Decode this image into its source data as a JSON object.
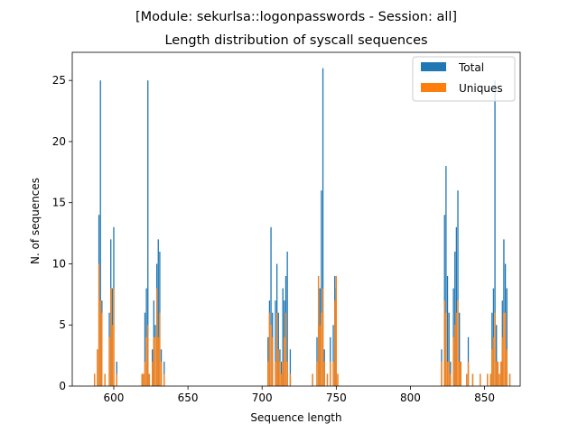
{
  "chart_data": {
    "type": "bar",
    "title": "[Module: sekurlsa::logonpasswords - Session: all]",
    "subtitle": "Length distribution of syscall sequences",
    "xlabel": "Sequence length",
    "ylabel": "N. of sequences",
    "xlim": [
      572,
      874
    ],
    "ylim": [
      0,
      27.3
    ],
    "xticks": [
      600,
      650,
      700,
      750,
      800,
      850
    ],
    "yticks": [
      0,
      5,
      10,
      15,
      20,
      25
    ],
    "grid": false,
    "legend_position": "top-right",
    "series": [
      {
        "name": "Total",
        "color": "#1f77b4",
        "points": [
          [
            587,
            1
          ],
          [
            589,
            3
          ],
          [
            590,
            14
          ],
          [
            591,
            25
          ],
          [
            592,
            7
          ],
          [
            594,
            1
          ],
          [
            597,
            6
          ],
          [
            598,
            12
          ],
          [
            599,
            8
          ],
          [
            600,
            13
          ],
          [
            602,
            2
          ],
          [
            619,
            1
          ],
          [
            620,
            1
          ],
          [
            621,
            6
          ],
          [
            622,
            8
          ],
          [
            623,
            25
          ],
          [
            624,
            1
          ],
          [
            626,
            3
          ],
          [
            627,
            7
          ],
          [
            628,
            5
          ],
          [
            629,
            10
          ],
          [
            630,
            12
          ],
          [
            631,
            11
          ],
          [
            632,
            3
          ],
          [
            634,
            2
          ],
          [
            704,
            4
          ],
          [
            705,
            7
          ],
          [
            706,
            13
          ],
          [
            707,
            6
          ],
          [
            709,
            7
          ],
          [
            710,
            10
          ],
          [
            711,
            6
          ],
          [
            712,
            3
          ],
          [
            713,
            2
          ],
          [
            714,
            8
          ],
          [
            715,
            7
          ],
          [
            716,
            9
          ],
          [
            717,
            11
          ],
          [
            719,
            3
          ],
          [
            734,
            1
          ],
          [
            737,
            4
          ],
          [
            738,
            9
          ],
          [
            739,
            8
          ],
          [
            740,
            16
          ],
          [
            741,
            26
          ],
          [
            742,
            3
          ],
          [
            744,
            1
          ],
          [
            746,
            4
          ],
          [
            748,
            5
          ],
          [
            749,
            9
          ],
          [
            750,
            8
          ],
          [
            751,
            1
          ],
          [
            821,
            3
          ],
          [
            823,
            14
          ],
          [
            824,
            18
          ],
          [
            825,
            9
          ],
          [
            826,
            6
          ],
          [
            827,
            2
          ],
          [
            829,
            8
          ],
          [
            830,
            11
          ],
          [
            831,
            13
          ],
          [
            832,
            16
          ],
          [
            833,
            6
          ],
          [
            834,
            2
          ],
          [
            838,
            1
          ],
          [
            839,
            4
          ],
          [
            842,
            1
          ],
          [
            847,
            1
          ],
          [
            852,
            1
          ],
          [
            854,
            1
          ],
          [
            855,
            6
          ],
          [
            856,
            8
          ],
          [
            857,
            25
          ],
          [
            858,
            5
          ],
          [
            859,
            2
          ],
          [
            860,
            1
          ],
          [
            861,
            2
          ],
          [
            862,
            7
          ],
          [
            863,
            12
          ],
          [
            864,
            10
          ],
          [
            865,
            8
          ],
          [
            867,
            1
          ]
        ]
      },
      {
        "name": "Uniques",
        "color": "#ff7f0e",
        "points": [
          [
            587,
            1
          ],
          [
            589,
            3
          ],
          [
            590,
            10
          ],
          [
            591,
            7
          ],
          [
            592,
            6
          ],
          [
            594,
            1
          ],
          [
            597,
            4
          ],
          [
            598,
            8
          ],
          [
            599,
            5
          ],
          [
            600,
            8
          ],
          [
            602,
            1
          ],
          [
            619,
            1
          ],
          [
            620,
            1
          ],
          [
            621,
            2
          ],
          [
            622,
            4
          ],
          [
            623,
            5
          ],
          [
            624,
            1
          ],
          [
            626,
            2
          ],
          [
            627,
            4
          ],
          [
            628,
            4
          ],
          [
            629,
            8
          ],
          [
            630,
            4
          ],
          [
            631,
            6
          ],
          [
            632,
            2
          ],
          [
            634,
            1
          ],
          [
            704,
            2
          ],
          [
            705,
            6
          ],
          [
            706,
            5
          ],
          [
            707,
            4
          ],
          [
            709,
            2
          ],
          [
            710,
            6
          ],
          [
            711,
            3
          ],
          [
            712,
            2
          ],
          [
            713,
            1
          ],
          [
            714,
            2
          ],
          [
            715,
            4
          ],
          [
            716,
            6
          ],
          [
            717,
            2
          ],
          [
            719,
            1
          ],
          [
            734,
            1
          ],
          [
            737,
            2
          ],
          [
            738,
            9
          ],
          [
            739,
            5
          ],
          [
            740,
            6
          ],
          [
            741,
            8
          ],
          [
            742,
            2
          ],
          [
            744,
            1
          ],
          [
            746,
            2
          ],
          [
            748,
            2
          ],
          [
            749,
            7
          ],
          [
            750,
            9
          ],
          [
            751,
            1
          ],
          [
            821,
            2
          ],
          [
            823,
            7
          ],
          [
            824,
            6
          ],
          [
            825,
            2
          ],
          [
            826,
            2
          ],
          [
            827,
            1
          ],
          [
            829,
            4
          ],
          [
            830,
            5
          ],
          [
            831,
            6
          ],
          [
            832,
            7
          ],
          [
            833,
            2
          ],
          [
            834,
            2
          ],
          [
            838,
            1
          ],
          [
            839,
            2
          ],
          [
            842,
            1
          ],
          [
            847,
            1
          ],
          [
            852,
            1
          ],
          [
            854,
            1
          ],
          [
            855,
            3
          ],
          [
            856,
            4
          ],
          [
            857,
            6
          ],
          [
            858,
            2
          ],
          [
            859,
            2
          ],
          [
            860,
            1
          ],
          [
            861,
            2
          ],
          [
            862,
            4
          ],
          [
            863,
            6
          ],
          [
            864,
            6
          ],
          [
            865,
            3
          ],
          [
            867,
            1
          ]
        ]
      }
    ]
  }
}
